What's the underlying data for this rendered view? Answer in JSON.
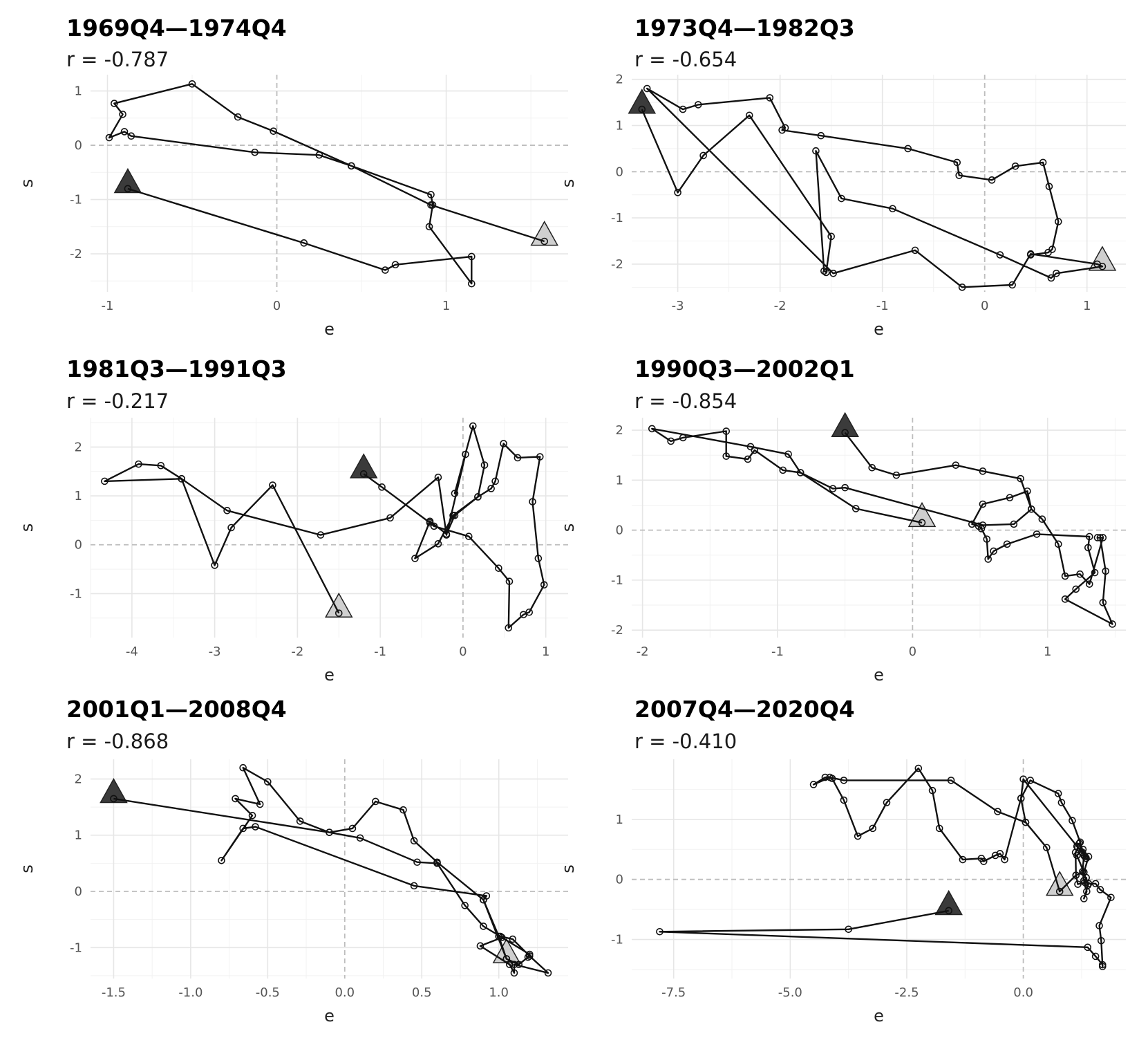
{
  "chart_data": [
    {
      "type": "line",
      "title": "1969Q4—1974Q4",
      "subtitle": "r = -0.787",
      "xlabel": "e",
      "ylabel": "s",
      "xlim": [
        -1.1,
        1.72
      ],
      "ylim": [
        -2.7,
        1.3
      ],
      "xticks": [
        -1,
        0,
        1
      ],
      "yticks": [
        -2,
        -1,
        0,
        1
      ],
      "start": [
        -0.88,
        -0.8
      ],
      "end": [
        1.58,
        -1.77
      ],
      "points": [
        [
          -0.88,
          -0.8
        ],
        [
          0.16,
          -1.8
        ],
        [
          0.64,
          -2.3
        ],
        [
          0.7,
          -2.2
        ],
        [
          1.15,
          -2.05
        ],
        [
          1.15,
          -2.55
        ],
        [
          0.9,
          -1.5
        ],
        [
          0.92,
          -1.1
        ],
        [
          0.91,
          -0.91
        ],
        [
          0.44,
          -0.38
        ],
        [
          0.25,
          -0.18
        ],
        [
          -0.13,
          -0.13
        ],
        [
          -0.86,
          0.17
        ],
        [
          -0.9,
          0.25
        ],
        [
          -0.99,
          0.14
        ],
        [
          -0.91,
          0.57
        ],
        [
          -0.96,
          0.77
        ],
        [
          -0.5,
          1.13
        ],
        [
          -0.23,
          0.52
        ],
        [
          -0.02,
          0.26
        ],
        [
          0.44,
          -0.38
        ],
        [
          0.91,
          -1.1
        ],
        [
          1.58,
          -1.77
        ]
      ]
    },
    {
      "type": "line",
      "title": "1973Q4—1982Q3",
      "subtitle": "r = -0.654",
      "xlabel": "e",
      "ylabel": "s",
      "xlim": [
        -3.45,
        1.38
      ],
      "ylim": [
        -2.6,
        2.1
      ],
      "xticks": [
        -3,
        -2,
        -1,
        0,
        1
      ],
      "yticks": [
        -2,
        -1,
        0,
        1,
        2
      ],
      "start": [
        -3.35,
        1.35
      ],
      "end": [
        1.15,
        -2.05
      ],
      "points": [
        [
          -3.35,
          1.35
        ],
        [
          -3.0,
          -0.45
        ],
        [
          -2.75,
          0.35
        ],
        [
          -2.3,
          1.22
        ],
        [
          -1.5,
          -1.4
        ],
        [
          -1.55,
          -2.18
        ],
        [
          -1.57,
          -2.15
        ],
        [
          -1.65,
          0.45
        ],
        [
          -1.4,
          -0.58
        ],
        [
          -0.9,
          -0.8
        ],
        [
          0.15,
          -1.8
        ],
        [
          0.65,
          -2.3
        ],
        [
          0.7,
          -2.2
        ],
        [
          1.15,
          -2.05
        ],
        [
          1.1,
          -2.0
        ],
        [
          0.45,
          -1.78
        ],
        [
          0.27,
          -2.45
        ],
        [
          -0.22,
          -2.5
        ],
        [
          -0.68,
          -1.7
        ],
        [
          -1.48,
          -2.2
        ],
        [
          -3.3,
          1.8
        ],
        [
          -2.95,
          1.35
        ],
        [
          -2.8,
          1.45
        ],
        [
          -2.1,
          1.6
        ],
        [
          -1.95,
          0.95
        ],
        [
          -1.98,
          0.9
        ],
        [
          -1.6,
          0.78
        ],
        [
          -0.75,
          0.5
        ],
        [
          -0.27,
          0.2
        ],
        [
          -0.25,
          -0.08
        ],
        [
          0.07,
          -0.18
        ],
        [
          0.3,
          0.12
        ],
        [
          0.57,
          0.2
        ],
        [
          0.63,
          -0.32
        ],
        [
          0.72,
          -1.08
        ],
        [
          0.66,
          -1.68
        ],
        [
          0.62,
          -1.75
        ],
        [
          0.45,
          -1.8
        ]
      ]
    },
    {
      "type": "line",
      "title": "1981Q3—1991Q3",
      "subtitle": "r = -0.217",
      "xlabel": "e",
      "ylabel": "s",
      "xlim": [
        -4.5,
        1.27
      ],
      "ylim": [
        -1.9,
        2.6
      ],
      "xticks": [
        -4,
        -3,
        -2,
        -1,
        0,
        1
      ],
      "yticks": [
        -1,
        0,
        1,
        2
      ],
      "start": [
        -1.2,
        1.45
      ],
      "end": [
        -1.5,
        -1.4
      ],
      "points": [
        [
          -1.2,
          1.45
        ],
        [
          -0.98,
          1.18
        ],
        [
          -0.4,
          0.45
        ],
        [
          -0.35,
          0.38
        ],
        [
          0.07,
          0.17
        ],
        [
          0.43,
          -0.48
        ],
        [
          0.56,
          -0.75
        ],
        [
          0.55,
          -1.7
        ],
        [
          0.73,
          -1.43
        ],
        [
          0.8,
          -1.38
        ],
        [
          0.98,
          -0.82
        ],
        [
          0.91,
          -0.28
        ],
        [
          0.84,
          0.88
        ],
        [
          0.93,
          1.8
        ],
        [
          0.66,
          1.78
        ],
        [
          0.49,
          2.07
        ],
        [
          0.39,
          1.3
        ],
        [
          0.34,
          1.15
        ],
        [
          0.18,
          0.98
        ],
        [
          -0.12,
          0.6
        ],
        [
          -0.3,
          0.02
        ],
        [
          -0.58,
          -0.28
        ],
        [
          -0.4,
          0.48
        ],
        [
          -0.2,
          0.22
        ],
        [
          -0.1,
          0.6
        ],
        [
          0.18,
          0.98
        ],
        [
          0.26,
          1.63
        ],
        [
          0.12,
          2.43
        ],
        [
          -0.1,
          1.05
        ],
        [
          0.03,
          1.85
        ],
        [
          -0.2,
          0.2
        ],
        [
          -0.3,
          1.38
        ],
        [
          -0.88,
          0.55
        ],
        [
          -1.72,
          0.2
        ],
        [
          -2.85,
          0.7
        ],
        [
          -3.4,
          1.35
        ],
        [
          -3.65,
          1.62
        ],
        [
          -3.92,
          1.65
        ],
        [
          -4.33,
          1.3
        ],
        [
          -3.4,
          1.35
        ],
        [
          -3.0,
          -0.42
        ],
        [
          -2.8,
          0.35
        ],
        [
          -2.3,
          1.22
        ],
        [
          -1.5,
          -1.4
        ]
      ]
    },
    {
      "type": "line",
      "title": "1990Q3—2002Q1",
      "subtitle": "r = -0.854",
      "xlabel": "e",
      "ylabel": "s",
      "xlim": [
        -2.08,
        1.58
      ],
      "ylim": [
        -2.15,
        2.25
      ],
      "xticks": [
        -2,
        -1,
        0,
        1
      ],
      "yticks": [
        -2,
        -1,
        0,
        1,
        2
      ],
      "start": [
        -0.5,
        1.95
      ],
      "end": [
        0.07,
        0.15
      ],
      "points": [
        [
          -0.5,
          1.95
        ],
        [
          -0.3,
          1.25
        ],
        [
          -0.12,
          1.1
        ],
        [
          0.32,
          1.3
        ],
        [
          0.52,
          1.18
        ],
        [
          0.8,
          1.03
        ],
        [
          0.88,
          0.42
        ],
        [
          0.96,
          0.22
        ],
        [
          1.08,
          -0.28
        ],
        [
          1.13,
          -0.92
        ],
        [
          1.24,
          -0.88
        ],
        [
          1.31,
          -1.08
        ],
        [
          1.41,
          -0.15
        ],
        [
          1.37,
          -0.15
        ],
        [
          1.39,
          -0.15
        ],
        [
          1.43,
          -0.82
        ],
        [
          1.41,
          -1.45
        ],
        [
          1.48,
          -1.88
        ],
        [
          1.13,
          -1.38
        ],
        [
          1.21,
          -1.18
        ],
        [
          1.35,
          -0.85
        ],
        [
          1.3,
          -0.35
        ],
        [
          1.31,
          -0.13
        ],
        [
          0.92,
          -0.08
        ],
        [
          0.7,
          -0.28
        ],
        [
          0.6,
          -0.42
        ],
        [
          0.56,
          -0.58
        ],
        [
          0.55,
          -0.18
        ],
        [
          0.51,
          0.03
        ],
        [
          0.49,
          0.08
        ],
        [
          0.44,
          0.12
        ],
        [
          0.52,
          0.52
        ],
        [
          0.72,
          0.65
        ],
        [
          0.85,
          0.78
        ],
        [
          0.88,
          0.42
        ],
        [
          0.75,
          0.12
        ],
        [
          0.52,
          0.1
        ],
        [
          -0.5,
          0.85
        ],
        [
          -0.59,
          0.83
        ],
        [
          -0.83,
          1.15
        ],
        [
          -0.96,
          1.2
        ],
        [
          -1.17,
          1.6
        ],
        [
          -1.22,
          1.42
        ],
        [
          -1.38,
          1.48
        ],
        [
          -1.38,
          1.98
        ],
        [
          -1.7,
          1.85
        ],
        [
          -1.79,
          1.78
        ],
        [
          -1.93,
          2.03
        ],
        [
          -1.2,
          1.67
        ],
        [
          -0.92,
          1.52
        ],
        [
          -0.83,
          1.15
        ],
        [
          -0.42,
          0.43
        ],
        [
          0.07,
          0.15
        ]
      ]
    },
    {
      "type": "line",
      "title": "2001Q1—2008Q4",
      "subtitle": "r = -0.868",
      "xlabel": "e",
      "ylabel": "s",
      "xlim": [
        -1.65,
        1.45
      ],
      "ylim": [
        -1.55,
        2.35
      ],
      "xticks": [
        -1.5,
        -1.0,
        -0.5,
        0.0,
        0.5,
        1.0
      ],
      "yticks": [
        -1,
        0,
        1,
        2
      ],
      "start": [
        -1.5,
        1.65
      ],
      "end": [
        1.05,
        -1.2
      ],
      "points": [
        [
          -1.5,
          1.65
        ],
        [
          -0.1,
          1.05
        ],
        [
          0.1,
          0.95
        ],
        [
          0.47,
          0.52
        ],
        [
          0.6,
          0.5
        ],
        [
          0.78,
          -0.25
        ],
        [
          0.9,
          -0.62
        ],
        [
          1.01,
          -0.8
        ],
        [
          1.09,
          -0.85
        ],
        [
          1.2,
          -1.15
        ],
        [
          1.32,
          -1.45
        ],
        [
          1.1,
          -1.3
        ],
        [
          1.1,
          -1.45
        ],
        [
          1.07,
          -1.3
        ],
        [
          0.88,
          -0.97
        ],
        [
          1.02,
          -0.82
        ],
        [
          1.2,
          -1.12
        ],
        [
          1.19,
          -1.17
        ],
        [
          1.13,
          -1.3
        ],
        [
          1.05,
          -1.2
        ],
        [
          0.9,
          -0.15
        ],
        [
          0.92,
          -0.08
        ],
        [
          0.45,
          0.1
        ],
        [
          -0.58,
          1.15
        ],
        [
          -0.66,
          1.12
        ],
        [
          -0.8,
          0.55
        ],
        [
          -0.6,
          1.35
        ],
        [
          -0.71,
          1.65
        ],
        [
          -0.55,
          1.55
        ],
        [
          -0.66,
          2.2
        ],
        [
          -0.5,
          1.95
        ],
        [
          -0.29,
          1.25
        ],
        [
          -0.1,
          1.05
        ],
        [
          0.05,
          1.12
        ],
        [
          0.2,
          1.6
        ],
        [
          0.38,
          1.45
        ],
        [
          0.45,
          0.9
        ],
        [
          0.6,
          0.52
        ],
        [
          0.9,
          -0.15
        ],
        [
          1.0,
          -0.8
        ],
        [
          1.05,
          -1.2
        ]
      ]
    },
    {
      "type": "line",
      "title": "2007Q4—2020Q4",
      "subtitle": "r = -0.410",
      "xlabel": "e",
      "ylabel": "s",
      "xlim": [
        -8.4,
        2.2
      ],
      "ylim": [
        -1.65,
        2.0
      ],
      "xticks": [
        -7.5,
        -5.0,
        -2.5,
        0.0
      ],
      "yticks": [
        -1,
        0,
        1
      ],
      "start": [
        -1.6,
        -0.52
      ],
      "end": [
        0.78,
        -0.2
      ],
      "points": [
        [
          -1.6,
          -0.52
        ],
        [
          -3.75,
          -0.83
        ],
        [
          -7.8,
          -0.87
        ],
        [
          1.38,
          -1.13
        ],
        [
          1.55,
          -1.28
        ],
        [
          1.7,
          -1.42
        ],
        [
          1.7,
          -1.45
        ],
        [
          1.67,
          -1.02
        ],
        [
          1.63,
          -0.77
        ],
        [
          1.88,
          -0.3
        ],
        [
          1.65,
          -0.17
        ],
        [
          1.55,
          -0.07
        ],
        [
          1.4,
          -0.07
        ],
        [
          1.3,
          -0.32
        ],
        [
          1.36,
          -0.2
        ],
        [
          1.3,
          -0.02
        ],
        [
          1.27,
          0.13
        ],
        [
          1.3,
          0.4
        ],
        [
          1.22,
          0.62
        ],
        [
          1.05,
          0.98
        ],
        [
          0.82,
          1.28
        ],
        [
          0.75,
          1.43
        ],
        [
          0.15,
          1.65
        ],
        [
          -0.05,
          1.35
        ],
        [
          0.05,
          0.95
        ],
        [
          0.5,
          0.53
        ],
        [
          0.78,
          -0.2
        ],
        [
          1.13,
          0.07
        ],
        [
          1.12,
          0.45
        ],
        [
          1.17,
          0.53
        ],
        [
          1.15,
          0.55
        ],
        [
          1.2,
          0.6
        ],
        [
          1.27,
          0.45
        ],
        [
          1.32,
          0.38
        ],
        [
          1.35,
          0.35
        ],
        [
          1.28,
          0.5
        ],
        [
          1.15,
          0.4
        ],
        [
          1.3,
          0.12
        ],
        [
          1.13,
          0.07
        ],
        [
          1.17,
          -0.08
        ],
        [
          1.32,
          -0.05
        ],
        [
          1.35,
          0.03
        ],
        [
          1.38,
          -0.1
        ],
        [
          1.3,
          0.12
        ],
        [
          1.4,
          0.38
        ],
        [
          1.33,
          0.38
        ],
        [
          0.0,
          1.67
        ],
        [
          -0.05,
          1.35
        ],
        [
          -0.4,
          0.33
        ],
        [
          -0.5,
          0.43
        ],
        [
          -0.6,
          0.4
        ],
        [
          -0.85,
          0.3
        ],
        [
          -0.9,
          0.35
        ],
        [
          -1.3,
          0.33
        ],
        [
          -1.8,
          0.85
        ],
        [
          -1.95,
          1.48
        ],
        [
          -2.25,
          1.85
        ],
        [
          -2.93,
          1.28
        ],
        [
          -3.23,
          0.85
        ],
        [
          -3.55,
          0.72
        ],
        [
          -3.85,
          1.32
        ],
        [
          -4.1,
          1.68
        ],
        [
          -4.25,
          1.7
        ],
        [
          -4.5,
          1.58
        ],
        [
          -4.15,
          1.7
        ],
        [
          -3.85,
          1.65
        ],
        [
          -1.55,
          1.65
        ],
        [
          -0.55,
          1.13
        ],
        [
          0.05,
          0.95
        ]
      ]
    }
  ],
  "style": {
    "line_color": "#111111",
    "marker_edge": "#111111",
    "grid_color": "#e6e6e6",
    "zero_line_color": "#bdbdbd",
    "start_marker_fill": "#3b3b3b",
    "end_marker_fill": "#cfcfcf"
  }
}
